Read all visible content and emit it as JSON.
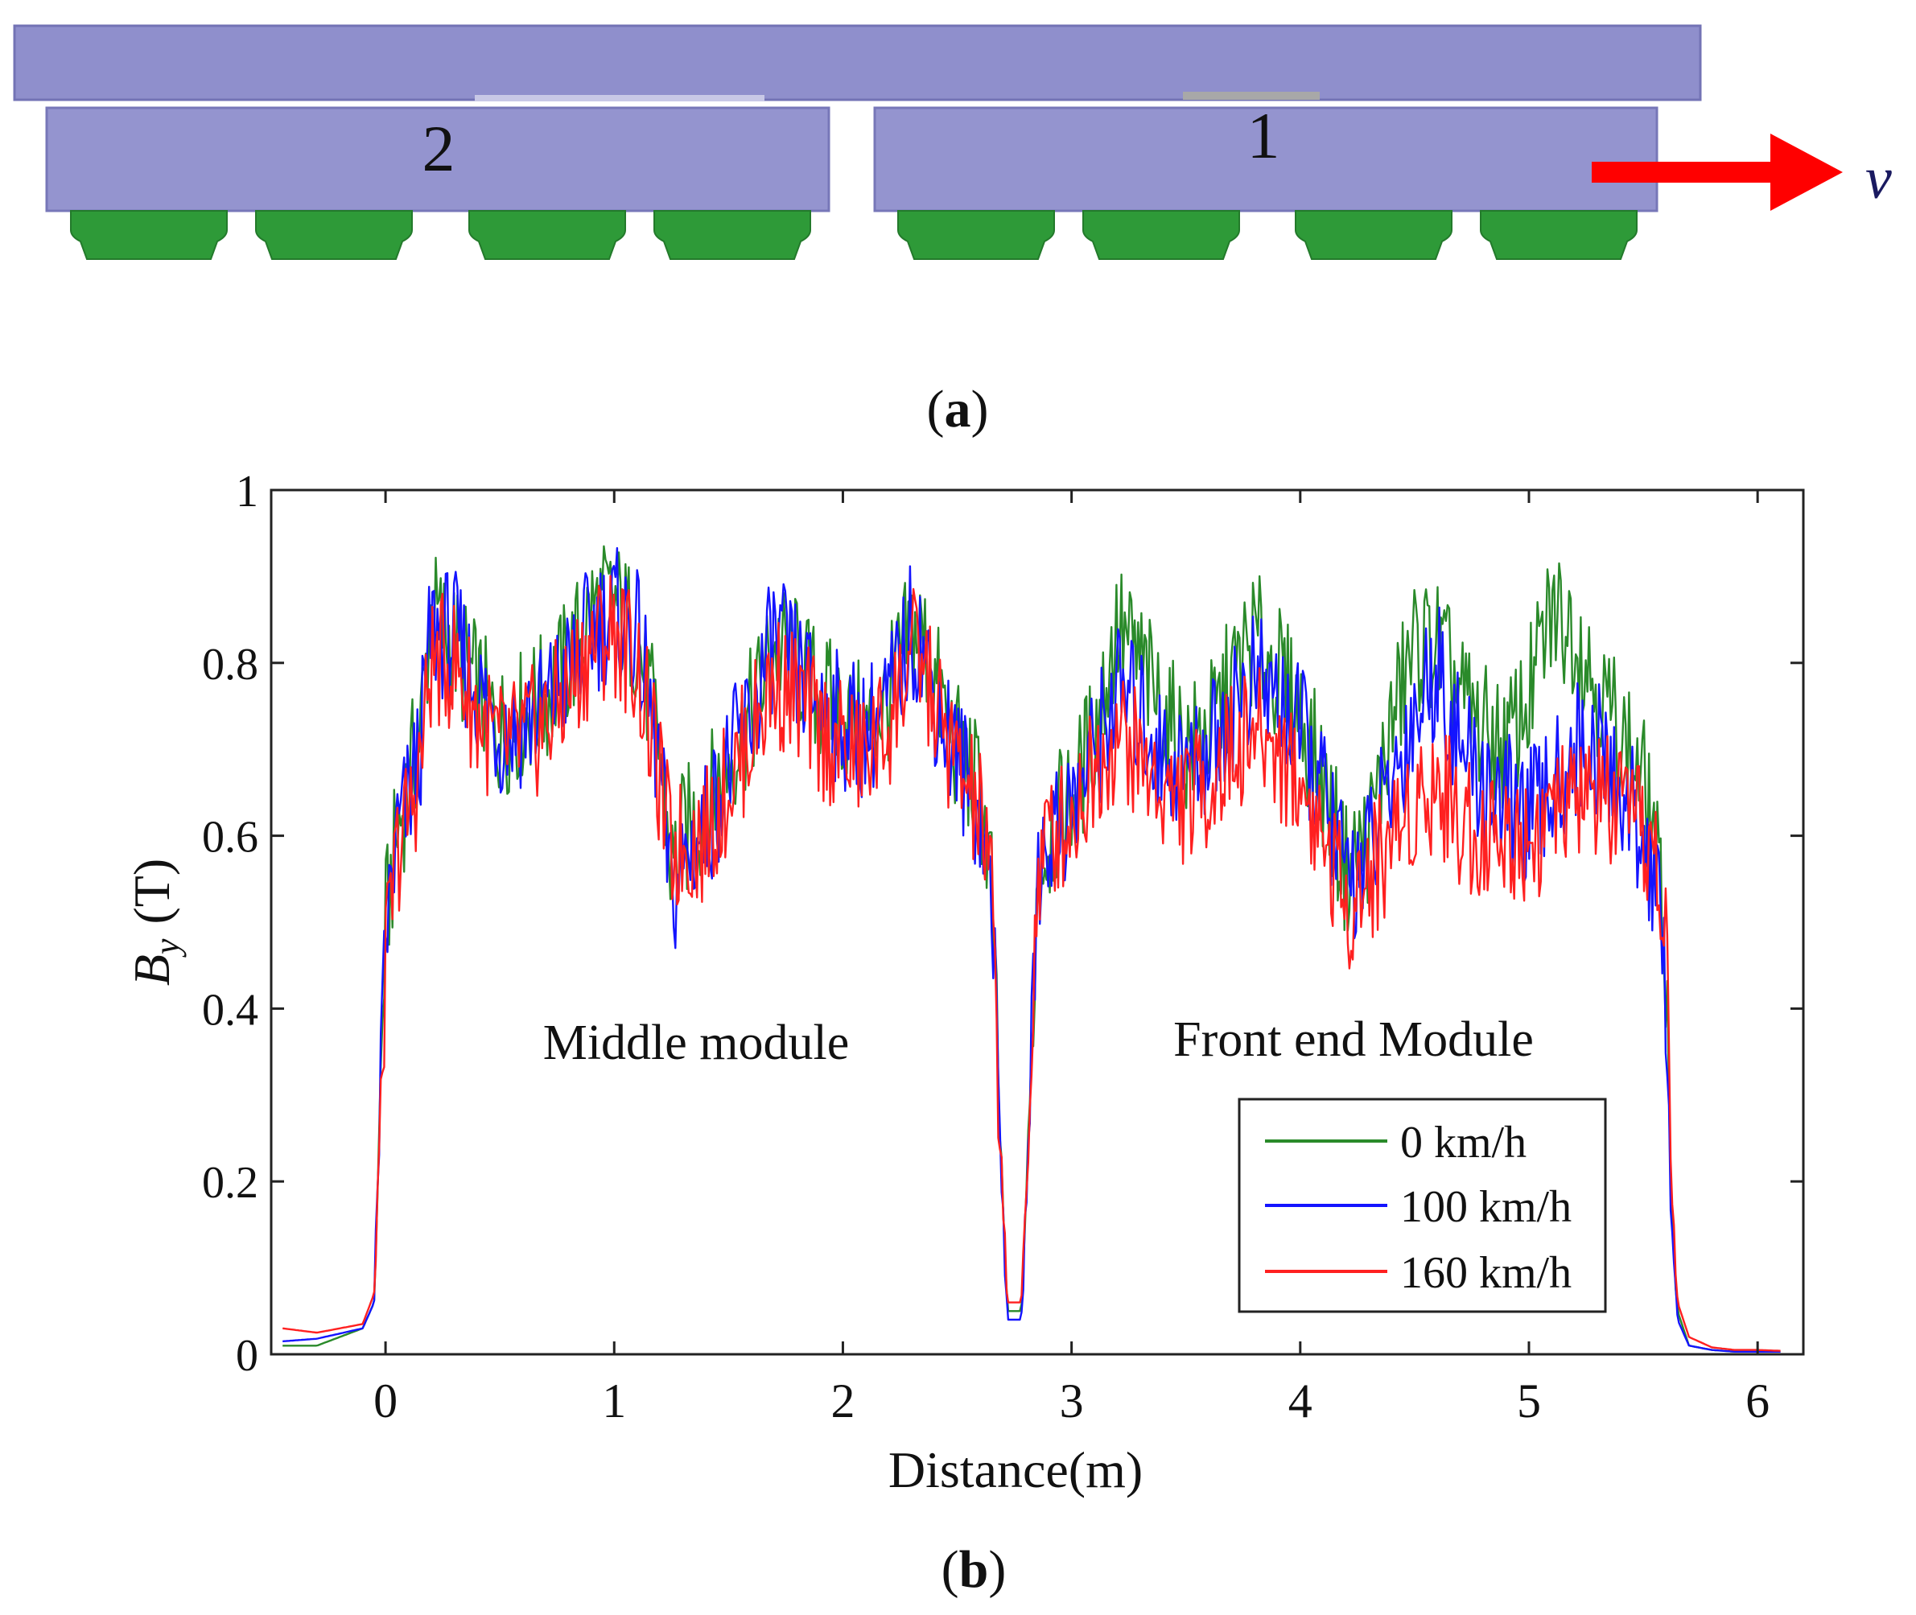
{
  "panel_a": {
    "module_labels": [
      "2",
      "1"
    ],
    "velocity_symbol": "v",
    "caption": "a",
    "colors": {
      "beam": "#8f8fcc",
      "module": "#9494cf",
      "magnet": "#2e9a38",
      "arrow": "#ff0000"
    }
  },
  "panel_b": {
    "caption": "b"
  },
  "chart_data": {
    "type": "line",
    "title": "",
    "xlabel": "Distance(m)",
    "ylabel_main": "B",
    "ylabel_sub": "y",
    "ylabel_unit": "(T)",
    "xlim": [
      -0.5,
      6.2
    ],
    "ylim": [
      0,
      1
    ],
    "x_ticks": [
      "0",
      "1",
      "2",
      "3",
      "4",
      "5",
      "6"
    ],
    "y_ticks": [
      "0",
      "0.2",
      "0.4",
      "0.6",
      "0.8",
      "1"
    ],
    "grid": false,
    "legend_position": "lower-right",
    "annotations": [
      "Middle module",
      "Front end Module"
    ],
    "series": [
      {
        "name": "0 km/h",
        "color": "#2a8a2a",
        "x": [
          -0.45,
          -0.3,
          -0.1,
          -0.05,
          0.0,
          0.05,
          0.1,
          0.15,
          0.2,
          0.3,
          0.4,
          0.5,
          0.6,
          0.7,
          0.8,
          0.9,
          1.0,
          1.1,
          1.2,
          1.25,
          1.3,
          1.4,
          1.5,
          1.6,
          1.7,
          1.8,
          1.9,
          2.0,
          2.1,
          2.2,
          2.3,
          2.35,
          2.4,
          2.5,
          2.6,
          2.65,
          2.68,
          2.72,
          2.78,
          2.82,
          2.85,
          2.9,
          3.0,
          3.1,
          3.2,
          3.3,
          3.4,
          3.5,
          3.6,
          3.7,
          3.8,
          3.9,
          4.0,
          4.1,
          4.2,
          4.3,
          4.4,
          4.5,
          4.6,
          4.7,
          4.8,
          4.9,
          5.0,
          5.1,
          5.2,
          5.3,
          5.4,
          5.5,
          5.55,
          5.6,
          5.62,
          5.65,
          5.7,
          5.8,
          5.9,
          6.0,
          6.1
        ],
        "y": [
          0.01,
          0.01,
          0.03,
          0.06,
          0.5,
          0.6,
          0.66,
          0.72,
          0.86,
          0.82,
          0.77,
          0.72,
          0.74,
          0.76,
          0.8,
          0.86,
          0.87,
          0.83,
          0.7,
          0.56,
          0.6,
          0.63,
          0.69,
          0.74,
          0.82,
          0.8,
          0.76,
          0.74,
          0.72,
          0.76,
          0.84,
          0.83,
          0.78,
          0.7,
          0.65,
          0.55,
          0.3,
          0.05,
          0.05,
          0.3,
          0.55,
          0.6,
          0.64,
          0.72,
          0.84,
          0.8,
          0.74,
          0.7,
          0.72,
          0.78,
          0.83,
          0.79,
          0.74,
          0.66,
          0.56,
          0.6,
          0.73,
          0.82,
          0.82,
          0.76,
          0.72,
          0.7,
          0.76,
          0.86,
          0.84,
          0.77,
          0.72,
          0.66,
          0.6,
          0.45,
          0.2,
          0.05,
          0.01,
          0.005,
          0.003,
          0.003,
          0.003
        ]
      },
      {
        "name": "100 km/h",
        "color": "#1414ff",
        "x": [
          -0.45,
          -0.3,
          -0.1,
          -0.05,
          0.0,
          0.05,
          0.1,
          0.15,
          0.2,
          0.3,
          0.4,
          0.5,
          0.6,
          0.7,
          0.8,
          0.9,
          1.0,
          1.1,
          1.2,
          1.25,
          1.3,
          1.4,
          1.5,
          1.6,
          1.7,
          1.8,
          1.9,
          2.0,
          2.1,
          2.2,
          2.3,
          2.35,
          2.4,
          2.5,
          2.6,
          2.65,
          2.68,
          2.72,
          2.78,
          2.82,
          2.85,
          2.9,
          3.0,
          3.1,
          3.2,
          3.3,
          3.4,
          3.5,
          3.6,
          3.7,
          3.8,
          3.9,
          4.0,
          4.1,
          4.2,
          4.3,
          4.4,
          4.5,
          4.6,
          4.7,
          4.8,
          4.9,
          5.0,
          5.1,
          5.2,
          5.3,
          5.4,
          5.5,
          5.55,
          5.6,
          5.62,
          5.65,
          5.7,
          5.8,
          5.9,
          6.0,
          6.1
        ],
        "y": [
          0.015,
          0.018,
          0.03,
          0.06,
          0.48,
          0.6,
          0.64,
          0.7,
          0.84,
          0.83,
          0.77,
          0.72,
          0.73,
          0.75,
          0.79,
          0.84,
          0.86,
          0.83,
          0.68,
          0.52,
          0.57,
          0.61,
          0.68,
          0.74,
          0.83,
          0.79,
          0.75,
          0.73,
          0.72,
          0.75,
          0.84,
          0.82,
          0.76,
          0.69,
          0.63,
          0.55,
          0.3,
          0.04,
          0.04,
          0.3,
          0.56,
          0.6,
          0.63,
          0.7,
          0.77,
          0.74,
          0.69,
          0.68,
          0.7,
          0.75,
          0.78,
          0.76,
          0.72,
          0.65,
          0.55,
          0.58,
          0.66,
          0.74,
          0.8,
          0.7,
          0.66,
          0.64,
          0.62,
          0.65,
          0.7,
          0.7,
          0.65,
          0.6,
          0.55,
          0.42,
          0.18,
          0.04,
          0.01,
          0.005,
          0.003,
          0.003,
          0.003
        ]
      },
      {
        "name": "160 km/h",
        "color": "#ff2020",
        "x": [
          -0.45,
          -0.3,
          -0.1,
          -0.05,
          0.0,
          0.05,
          0.1,
          0.15,
          0.2,
          0.3,
          0.4,
          0.5,
          0.6,
          0.7,
          0.8,
          0.9,
          1.0,
          1.1,
          1.2,
          1.25,
          1.3,
          1.4,
          1.5,
          1.6,
          1.7,
          1.8,
          1.9,
          2.0,
          2.1,
          2.2,
          2.3,
          2.35,
          2.4,
          2.5,
          2.6,
          2.65,
          2.68,
          2.72,
          2.78,
          2.82,
          2.85,
          2.9,
          3.0,
          3.1,
          3.2,
          3.3,
          3.4,
          3.5,
          3.6,
          3.7,
          3.8,
          3.9,
          4.0,
          4.1,
          4.2,
          4.3,
          4.4,
          4.5,
          4.6,
          4.7,
          4.8,
          4.9,
          5.0,
          5.1,
          5.2,
          5.3,
          5.4,
          5.5,
          5.55,
          5.6,
          5.62,
          5.65,
          5.7,
          5.8,
          5.9,
          6.0,
          6.1
        ],
        "y": [
          0.03,
          0.025,
          0.035,
          0.07,
          0.45,
          0.58,
          0.62,
          0.68,
          0.8,
          0.8,
          0.74,
          0.7,
          0.71,
          0.73,
          0.77,
          0.82,
          0.84,
          0.8,
          0.66,
          0.58,
          0.59,
          0.6,
          0.66,
          0.72,
          0.78,
          0.76,
          0.72,
          0.7,
          0.69,
          0.73,
          0.81,
          0.8,
          0.75,
          0.68,
          0.62,
          0.54,
          0.3,
          0.06,
          0.06,
          0.3,
          0.55,
          0.6,
          0.62,
          0.68,
          0.72,
          0.69,
          0.65,
          0.64,
          0.66,
          0.7,
          0.72,
          0.7,
          0.66,
          0.6,
          0.52,
          0.55,
          0.6,
          0.64,
          0.66,
          0.62,
          0.6,
          0.6,
          0.6,
          0.62,
          0.64,
          0.65,
          0.62,
          0.6,
          0.58,
          0.48,
          0.22,
          0.06,
          0.02,
          0.008,
          0.005,
          0.005,
          0.004
        ]
      }
    ]
  }
}
